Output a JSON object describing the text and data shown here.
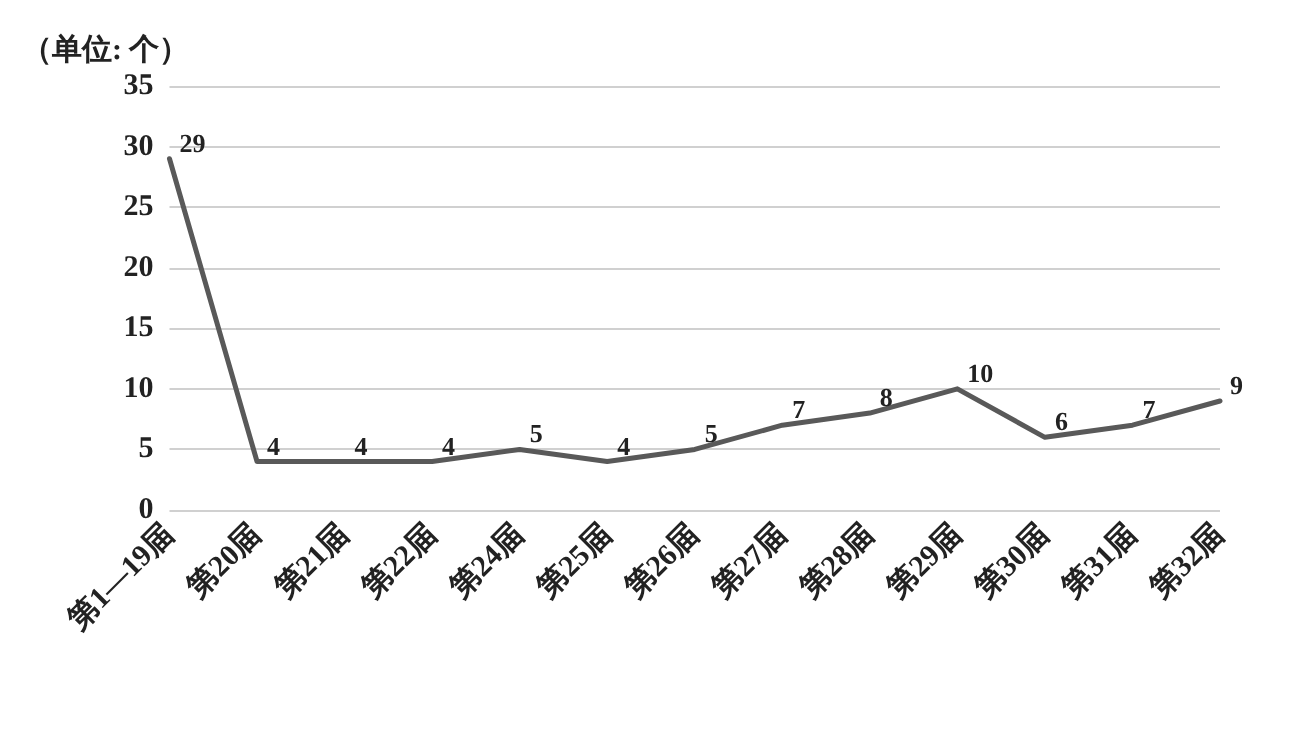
{
  "chart_data": {
    "type": "line",
    "ylabel": "（单位: 个）",
    "categories": [
      "第1—19届",
      "第20届",
      "第21届",
      "第22届",
      "第24届",
      "第25届",
      "第26届",
      "第27届",
      "第28届",
      "第29届",
      "第30届",
      "第31届",
      "第32届"
    ],
    "series": [
      {
        "color": "#595959",
        "values": [
          29,
          4,
          4,
          4,
          5,
          4,
          5,
          7,
          8,
          10,
          6,
          7,
          9
        ]
      }
    ],
    "ylim": [
      0,
      35
    ],
    "yticks": [
      0,
      5,
      10,
      15,
      20,
      25,
      30,
      35
    ],
    "grid": "y",
    "data_labels": true,
    "marker": "none",
    "line_style": "solid"
  }
}
